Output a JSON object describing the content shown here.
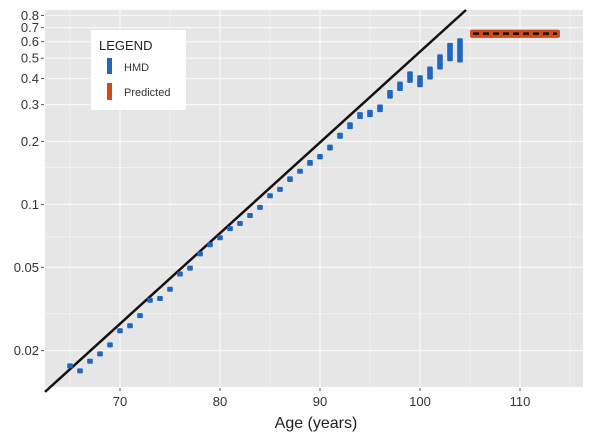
{
  "chart_data": {
    "type": "scatter",
    "title": "",
    "xlabel": "Age (years)",
    "ylabel": "",
    "xlim": [
      62.5,
      116.3
    ],
    "ylim": [
      0.0134,
      0.85
    ],
    "y_scale": "log",
    "x_ticks": [
      70,
      80,
      90,
      100,
      110
    ],
    "x_tick_labels": [
      "70",
      "80",
      "90",
      "100",
      "110"
    ],
    "y_ticks": [
      0.02,
      0.05,
      0.1,
      0.2,
      0.3,
      0.4,
      0.5,
      0.6,
      0.7,
      0.8
    ],
    "y_tick_labels": [
      "0.02",
      "0.05",
      "0.1",
      "0.2",
      "0.3",
      "0.4",
      "0.5",
      "0.6",
      "0.7",
      "0.8"
    ],
    "grid": true,
    "legend": {
      "title": "LEGEND",
      "placement": "top-left",
      "entries": [
        {
          "label": "HMD",
          "color": "#1f66c0"
        },
        {
          "label": "Predicted",
          "color": "#d2491a"
        }
      ]
    },
    "series": [
      {
        "name": "HMD",
        "color": "#1f66c0",
        "x": [
          65,
          66,
          67,
          68,
          69,
          70,
          71,
          72,
          73,
          74,
          75,
          76,
          77,
          78,
          79,
          80,
          81,
          82,
          83,
          84,
          85,
          86,
          87,
          88,
          89,
          90,
          91,
          92,
          93,
          94,
          95,
          96,
          97,
          98,
          99,
          100,
          101,
          102,
          103,
          104
        ],
        "y": [
          0.0169,
          0.016,
          0.0178,
          0.0193,
          0.0213,
          0.0249,
          0.0263,
          0.0294,
          0.0348,
          0.0355,
          0.0393,
          0.0465,
          0.0496,
          0.058,
          0.0641,
          0.0693,
          0.0766,
          0.081,
          0.0885,
          0.0968,
          0.11,
          0.118,
          0.132,
          0.144,
          0.158,
          0.169,
          0.187,
          0.213,
          0.238,
          0.266,
          0.272,
          0.288,
          0.336,
          0.367,
          0.406,
          0.388,
          0.425,
          0.48,
          0.535,
          0.545
        ],
        "lower": [
          0.0165,
          0.0156,
          0.0174,
          0.0189,
          0.0208,
          0.0243,
          0.0257,
          0.0287,
          0.034,
          0.0347,
          0.0384,
          0.0455,
          0.0485,
          0.0567,
          0.0627,
          0.0677,
          0.0748,
          0.0791,
          0.0864,
          0.0945,
          0.107,
          0.115,
          0.128,
          0.14,
          0.153,
          0.164,
          0.181,
          0.206,
          0.229,
          0.256,
          0.261,
          0.276,
          0.32,
          0.348,
          0.381,
          0.363,
          0.395,
          0.444,
          0.485,
          0.475
        ],
        "upper": [
          0.0173,
          0.0164,
          0.0182,
          0.0197,
          0.0218,
          0.0255,
          0.0269,
          0.0301,
          0.0356,
          0.0363,
          0.0402,
          0.0475,
          0.0507,
          0.0593,
          0.0655,
          0.0709,
          0.0784,
          0.0829,
          0.0906,
          0.0991,
          0.113,
          0.121,
          0.136,
          0.148,
          0.163,
          0.174,
          0.193,
          0.22,
          0.247,
          0.276,
          0.283,
          0.3,
          0.352,
          0.386,
          0.432,
          0.414,
          0.456,
          0.525,
          0.593,
          0.62
        ]
      },
      {
        "name": "Predicted",
        "type": "band",
        "color": "#d2491a",
        "x": [
          105,
          114
        ],
        "y": [
          0.655,
          0.655
        ],
        "lower": [
          0.625,
          0.625
        ],
        "upper": [
          0.685,
          0.685
        ],
        "center_line_style": "dashed",
        "center_line_color": "#111111"
      },
      {
        "type": "line",
        "color": "#111111",
        "x": [
          62.5,
          104.6
        ],
        "y": [
          0.0127,
          0.85
        ]
      }
    ]
  }
}
